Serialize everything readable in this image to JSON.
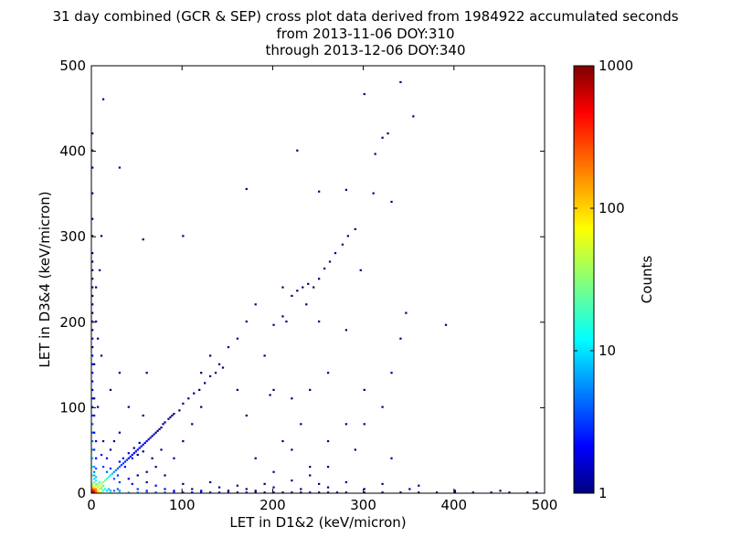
{
  "chart_data": {
    "type": "heatmap",
    "title": [
      "31 day combined (GCR & SEP) cross plot data derived from 1984922 accumulated seconds",
      "from 2013-11-06 DOY:310",
      "through 2013-12-06 DOY:340"
    ],
    "xlabel": "LET in D1&2 (keV/micron)",
    "ylabel": "LET in D3&4 (keV/micron)",
    "xlim": [
      0,
      500
    ],
    "ylim": [
      0,
      500
    ],
    "xticks": [
      "0",
      "100",
      "200",
      "300",
      "400",
      "500"
    ],
    "yticks": [
      "0",
      "100",
      "200",
      "300",
      "400",
      "500"
    ],
    "colorbar": {
      "label": "Counts",
      "scale": "log",
      "range": [
        1,
        1000
      ],
      "ticks": [
        "1",
        "10",
        "100",
        "1000"
      ],
      "colormap": "jet"
    },
    "bin_size": 2,
    "bins_xy_count": [
      [
        0,
        0,
        1000
      ],
      [
        2,
        0,
        600
      ],
      [
        0,
        2,
        500
      ],
      [
        2,
        2,
        400
      ],
      [
        4,
        0,
        250
      ],
      [
        0,
        4,
        250
      ],
      [
        4,
        2,
        200
      ],
      [
        2,
        4,
        200
      ],
      [
        6,
        0,
        120
      ],
      [
        0,
        6,
        120
      ],
      [
        4,
        4,
        150
      ],
      [
        6,
        2,
        90
      ],
      [
        2,
        6,
        90
      ],
      [
        8,
        0,
        60
      ],
      [
        0,
        8,
        60
      ],
      [
        6,
        6,
        80
      ],
      [
        8,
        8,
        60
      ],
      [
        10,
        10,
        45
      ],
      [
        12,
        12,
        35
      ],
      [
        14,
        14,
        25
      ],
      [
        16,
        16,
        18
      ],
      [
        18,
        18,
        14
      ],
      [
        20,
        20,
        10
      ],
      [
        22,
        22,
        8
      ],
      [
        24,
        24,
        6
      ],
      [
        10,
        4,
        30
      ],
      [
        4,
        10,
        30
      ],
      [
        12,
        2,
        20
      ],
      [
        2,
        12,
        20
      ],
      [
        14,
        4,
        12
      ],
      [
        4,
        14,
        12
      ],
      [
        16,
        2,
        10
      ],
      [
        2,
        16,
        10
      ],
      [
        18,
        4,
        8
      ],
      [
        4,
        18,
        8
      ],
      [
        20,
        2,
        7
      ],
      [
        2,
        20,
        7
      ],
      [
        24,
        2,
        5
      ],
      [
        2,
        24,
        5
      ],
      [
        28,
        4,
        4
      ],
      [
        4,
        28,
        4
      ],
      [
        8,
        4,
        40
      ],
      [
        4,
        8,
        40
      ],
      [
        10,
        6,
        30
      ],
      [
        6,
        10,
        30
      ],
      [
        12,
        8,
        20
      ],
      [
        8,
        12,
        20
      ],
      [
        26,
        26,
        5
      ],
      [
        28,
        28,
        4
      ],
      [
        30,
        30,
        4
      ],
      [
        32,
        32,
        3
      ],
      [
        34,
        34,
        3
      ],
      [
        36,
        36,
        3
      ],
      [
        38,
        38,
        3
      ],
      [
        40,
        40,
        2
      ],
      [
        42,
        42,
        2
      ],
      [
        44,
        44,
        2
      ],
      [
        46,
        46,
        2
      ],
      [
        48,
        48,
        2
      ],
      [
        50,
        50,
        2
      ],
      [
        52,
        52,
        2
      ],
      [
        54,
        54,
        2
      ],
      [
        56,
        56,
        2
      ],
      [
        58,
        58,
        2
      ],
      [
        60,
        60,
        2
      ],
      [
        62,
        62,
        1
      ],
      [
        64,
        64,
        2
      ],
      [
        66,
        66,
        1
      ],
      [
        68,
        68,
        2
      ],
      [
        70,
        70,
        1
      ],
      [
        72,
        72,
        1
      ],
      [
        74,
        74,
        1
      ],
      [
        76,
        76,
        1
      ],
      [
        78,
        80,
        1
      ],
      [
        80,
        82,
        1
      ],
      [
        84,
        86,
        1
      ],
      [
        86,
        88,
        1
      ],
      [
        88,
        90,
        1
      ],
      [
        90,
        92,
        1
      ],
      [
        96,
        96,
        1
      ],
      [
        100,
        104,
        1
      ],
      [
        106,
        110,
        1
      ],
      [
        112,
        116,
        1
      ],
      [
        118,
        120,
        1
      ],
      [
        124,
        128,
        1
      ],
      [
        130,
        136,
        1
      ],
      [
        136,
        140,
        1
      ],
      [
        144,
        146,
        1
      ],
      [
        34,
        40,
        2
      ],
      [
        40,
        46,
        2
      ],
      [
        46,
        52,
        1
      ],
      [
        52,
        58,
        1
      ],
      [
        44,
        40,
        2
      ],
      [
        50,
        44,
        1
      ],
      [
        56,
        48,
        1
      ],
      [
        30,
        36,
        2
      ],
      [
        36,
        30,
        2
      ],
      [
        20,
        28,
        3
      ],
      [
        28,
        20,
        3
      ],
      [
        16,
        24,
        4
      ],
      [
        24,
        16,
        4
      ],
      [
        30,
        12,
        3
      ],
      [
        12,
        30,
        3
      ],
      [
        40,
        16,
        2
      ],
      [
        16,
        40,
        2
      ],
      [
        50,
        20,
        1
      ],
      [
        20,
        50,
        1
      ],
      [
        60,
        24,
        1
      ],
      [
        24,
        60,
        1
      ],
      [
        70,
        30,
        1
      ],
      [
        30,
        70,
        1
      ],
      [
        44,
        10,
        2
      ],
      [
        10,
        44,
        2
      ],
      [
        60,
        12,
        1
      ],
      [
        12,
        60,
        1
      ],
      [
        80,
        20,
        1
      ],
      [
        90,
        40,
        1
      ],
      [
        100,
        60,
        1
      ],
      [
        76,
        50,
        1
      ],
      [
        66,
        40,
        1
      ],
      [
        110,
        80,
        1
      ],
      [
        120,
        100,
        1
      ],
      [
        56,
        90,
        1
      ],
      [
        40,
        100,
        1
      ],
      [
        20,
        120,
        1
      ],
      [
        30,
        140,
        1
      ],
      [
        60,
        140,
        1
      ],
      [
        0,
        10,
        40
      ],
      [
        0,
        20,
        20
      ],
      [
        0,
        30,
        12
      ],
      [
        0,
        40,
        8
      ],
      [
        0,
        50,
        6
      ],
      [
        0,
        60,
        5
      ],
      [
        0,
        70,
        4
      ],
      [
        0,
        80,
        4
      ],
      [
        0,
        90,
        3
      ],
      [
        0,
        100,
        3
      ],
      [
        0,
        110,
        2
      ],
      [
        0,
        120,
        2
      ],
      [
        0,
        130,
        2
      ],
      [
        0,
        140,
        2
      ],
      [
        0,
        150,
        2
      ],
      [
        0,
        160,
        2
      ],
      [
        0,
        170,
        1
      ],
      [
        0,
        180,
        2
      ],
      [
        0,
        190,
        1
      ],
      [
        0,
        200,
        2
      ],
      [
        0,
        210,
        1
      ],
      [
        0,
        220,
        1
      ],
      [
        0,
        230,
        1
      ],
      [
        0,
        240,
        1
      ],
      [
        0,
        250,
        1
      ],
      [
        0,
        260,
        1
      ],
      [
        0,
        270,
        1
      ],
      [
        0,
        280,
        1
      ],
      [
        0,
        300,
        1
      ],
      [
        0,
        320,
        1
      ],
      [
        0,
        350,
        1
      ],
      [
        0,
        380,
        1
      ],
      [
        0,
        400,
        1
      ],
      [
        0,
        420,
        1
      ],
      [
        2,
        30,
        6
      ],
      [
        2,
        50,
        3
      ],
      [
        2,
        70,
        2
      ],
      [
        2,
        90,
        2
      ],
      [
        2,
        110,
        1
      ],
      [
        2,
        150,
        1
      ],
      [
        4,
        40,
        2
      ],
      [
        4,
        60,
        2
      ],
      [
        4,
        200,
        1
      ],
      [
        4,
        240,
        1
      ],
      [
        6,
        100,
        1
      ],
      [
        8,
        260,
        1
      ],
      [
        10,
        300,
        1
      ],
      [
        10,
        160,
        1
      ],
      [
        6,
        180,
        1
      ],
      [
        10,
        0,
        40
      ],
      [
        20,
        0,
        20
      ],
      [
        30,
        0,
        12
      ],
      [
        40,
        0,
        8
      ],
      [
        50,
        0,
        6
      ],
      [
        60,
        0,
        5
      ],
      [
        70,
        0,
        4
      ],
      [
        80,
        0,
        4
      ],
      [
        90,
        0,
        3
      ],
      [
        100,
        0,
        3
      ],
      [
        110,
        0,
        2
      ],
      [
        120,
        0,
        2
      ],
      [
        130,
        0,
        2
      ],
      [
        140,
        0,
        2
      ],
      [
        150,
        0,
        2
      ],
      [
        160,
        0,
        1
      ],
      [
        170,
        0,
        2
      ],
      [
        180,
        0,
        1
      ],
      [
        190,
        0,
        1
      ],
      [
        200,
        0,
        2
      ],
      [
        210,
        0,
        1
      ],
      [
        220,
        0,
        1
      ],
      [
        230,
        0,
        1
      ],
      [
        240,
        0,
        2
      ],
      [
        250,
        0,
        1
      ],
      [
        260,
        0,
        1
      ],
      [
        270,
        0,
        1
      ],
      [
        280,
        0,
        1
      ],
      [
        300,
        0,
        1
      ],
      [
        320,
        0,
        1
      ],
      [
        340,
        0,
        1
      ],
      [
        360,
        0,
        1
      ],
      [
        380,
        0,
        1
      ],
      [
        400,
        0,
        1
      ],
      [
        420,
        0,
        1
      ],
      [
        440,
        0,
        1
      ],
      [
        460,
        0,
        1
      ],
      [
        480,
        0,
        1
      ],
      [
        490,
        0,
        1
      ],
      [
        30,
        2,
        6
      ],
      [
        60,
        2,
        3
      ],
      [
        90,
        2,
        2
      ],
      [
        120,
        2,
        2
      ],
      [
        150,
        2,
        1
      ],
      [
        180,
        2,
        1
      ],
      [
        50,
        4,
        3
      ],
      [
        80,
        4,
        2
      ],
      [
        110,
        4,
        1
      ],
      [
        140,
        6,
        1
      ],
      [
        170,
        4,
        1
      ],
      [
        200,
        6,
        1
      ],
      [
        230,
        4,
        1
      ],
      [
        260,
        6,
        1
      ],
      [
        300,
        4,
        1
      ],
      [
        350,
        4,
        1
      ],
      [
        400,
        2,
        1
      ],
      [
        450,
        2,
        1
      ],
      [
        70,
        8,
        2
      ],
      [
        100,
        10,
        1
      ],
      [
        130,
        12,
        1
      ],
      [
        160,
        8,
        1
      ],
      [
        190,
        10,
        1
      ],
      [
        220,
        14,
        1
      ],
      [
        250,
        10,
        1
      ],
      [
        280,
        12,
        1
      ],
      [
        320,
        10,
        1
      ],
      [
        360,
        8,
        1
      ],
      [
        240,
        20,
        1
      ],
      [
        200,
        24,
        1
      ],
      [
        260,
        30,
        1
      ],
      [
        180,
        40,
        1
      ],
      [
        200,
        196,
        1
      ],
      [
        210,
        206,
        1
      ],
      [
        220,
        230,
        1
      ],
      [
        226,
        236,
        1
      ],
      [
        232,
        240,
        1
      ],
      [
        238,
        244,
        1
      ],
      [
        244,
        240,
        1
      ],
      [
        250,
        250,
        1
      ],
      [
        256,
        262,
        1
      ],
      [
        262,
        270,
        1
      ],
      [
        268,
        280,
        1
      ],
      [
        276,
        290,
        1
      ],
      [
        282,
        300,
        1
      ],
      [
        290,
        308,
        1
      ],
      [
        296,
        260,
        1
      ],
      [
        210,
        240,
        1
      ],
      [
        214,
        200,
        1
      ],
      [
        236,
        220,
        1
      ],
      [
        250,
        200,
        1
      ],
      [
        170,
        200,
        1
      ],
      [
        180,
        220,
        1
      ],
      [
        160,
        180,
        1
      ],
      [
        150,
        170,
        1
      ],
      [
        140,
        150,
        1
      ],
      [
        130,
        160,
        1
      ],
      [
        120,
        140,
        1
      ],
      [
        190,
        160,
        1
      ],
      [
        240,
        120,
        1
      ],
      [
        260,
        140,
        1
      ],
      [
        280,
        80,
        1
      ],
      [
        300,
        120,
        1
      ],
      [
        320,
        100,
        1
      ],
      [
        330,
        140,
        1
      ],
      [
        340,
        180,
        1
      ],
      [
        346,
        210,
        1
      ],
      [
        390,
        196,
        1
      ],
      [
        300,
        80,
        1
      ],
      [
        260,
        60,
        1
      ],
      [
        230,
        80,
        1
      ],
      [
        220,
        110,
        1
      ],
      [
        196,
        114,
        1
      ],
      [
        160,
        120,
        1
      ],
      [
        170,
        90,
        1
      ],
      [
        210,
        60,
        1
      ],
      [
        300,
        466,
        1
      ],
      [
        340,
        480,
        1
      ],
      [
        354,
        440,
        1
      ],
      [
        326,
        420,
        1
      ],
      [
        330,
        340,
        1
      ],
      [
        310,
        350,
        1
      ],
      [
        312,
        396,
        1
      ],
      [
        320,
        415,
        1
      ],
      [
        250,
        352,
        1
      ],
      [
        280,
        354,
        1
      ],
      [
        226,
        400,
        1
      ],
      [
        170,
        355,
        1
      ],
      [
        100,
        300,
        1
      ],
      [
        56,
        296,
        1
      ],
      [
        30,
        380,
        1
      ],
      [
        12,
        460,
        1
      ],
      [
        240,
        30,
        1
      ],
      [
        290,
        50,
        1
      ],
      [
        330,
        40,
        1
      ],
      [
        220,
        50,
        1
      ],
      [
        200,
        120,
        1
      ],
      [
        280,
        190,
        1
      ]
    ]
  }
}
